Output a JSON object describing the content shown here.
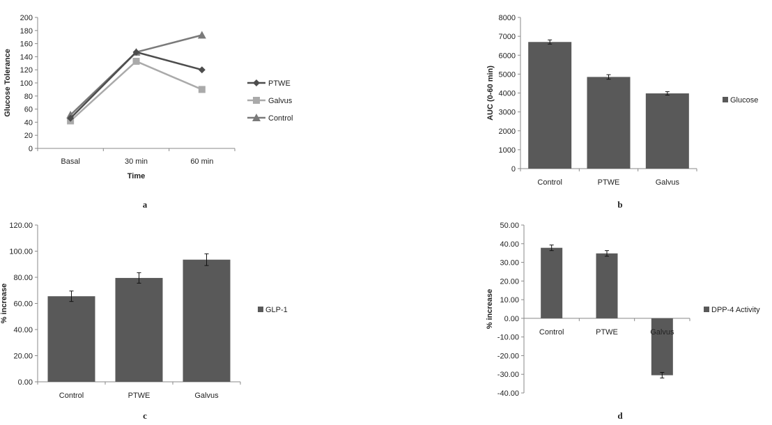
{
  "chart_data": [
    {
      "panel_label": "a",
      "type": "line",
      "categories": [
        "Basal",
        "30 min",
        "60 min"
      ],
      "series": [
        {
          "name": "PTWE",
          "values": [
            46,
            147,
            120
          ],
          "color": "#4d4d4d",
          "marker": "diamond"
        },
        {
          "name": "Galvus",
          "values": [
            42,
            133,
            90
          ],
          "color": "#aaaaaa",
          "marker": "square"
        },
        {
          "name": "Control",
          "values": [
            51,
            147,
            173
          ],
          "color": "#7a7a7a",
          "marker": "triangle"
        }
      ],
      "xlabel": "Time",
      "ylabel": "Glucose Tolerance",
      "ylim": [
        0,
        200
      ],
      "yticks": [
        "0",
        "20",
        "40",
        "60",
        "80",
        "100",
        "120",
        "140",
        "160",
        "180",
        "200"
      ],
      "grid": false,
      "legend": "right"
    },
    {
      "panel_label": "b",
      "type": "bar",
      "categories": [
        "Control",
        "PTWE",
        "Galvus"
      ],
      "series": [
        {
          "name": "Glucose",
          "values": [
            6700,
            4850,
            3980
          ],
          "errors": [
            110,
            120,
            90
          ],
          "color": "#595959"
        }
      ],
      "xlabel": "",
      "ylabel": "AUC (0-60 min)",
      "ylim": [
        0,
        8000
      ],
      "yticks": [
        "0",
        "1000",
        "2000",
        "3000",
        "4000",
        "5000",
        "6000",
        "7000",
        "8000"
      ],
      "grid": false,
      "legend": "right"
    },
    {
      "panel_label": "c",
      "type": "bar",
      "categories": [
        "Control",
        "PTWE",
        "Galvus"
      ],
      "series": [
        {
          "name": "GLP-1",
          "values": [
            65.5,
            79.5,
            93.5
          ],
          "errors": [
            4,
            4,
            4.5
          ],
          "color": "#595959"
        }
      ],
      "xlabel": "",
      "ylabel": "% increase",
      "ylim": [
        0,
        120
      ],
      "yticks": [
        "0.00",
        "20.00",
        "40.00",
        "60.00",
        "80.00",
        "100.00",
        "120.00"
      ],
      "grid": false,
      "legend": "right"
    },
    {
      "panel_label": "d",
      "type": "bar",
      "categories": [
        "Control",
        "PTWE",
        "Galvus"
      ],
      "series": [
        {
          "name": "DPP-4 Activity",
          "values": [
            37.8,
            34.8,
            -30.5
          ],
          "errors": [
            1.5,
            1.5,
            1.5
          ],
          "color": "#595959"
        }
      ],
      "xlabel": "",
      "ylabel": "% increase",
      "ylim": [
        -40,
        50
      ],
      "yticks": [
        "-40.00",
        "-30.00",
        "-20.00",
        "-10.00",
        "0.00",
        "10.00",
        "20.00",
        "30.00",
        "40.00",
        "50.00"
      ],
      "grid": false,
      "legend": "right"
    }
  ]
}
